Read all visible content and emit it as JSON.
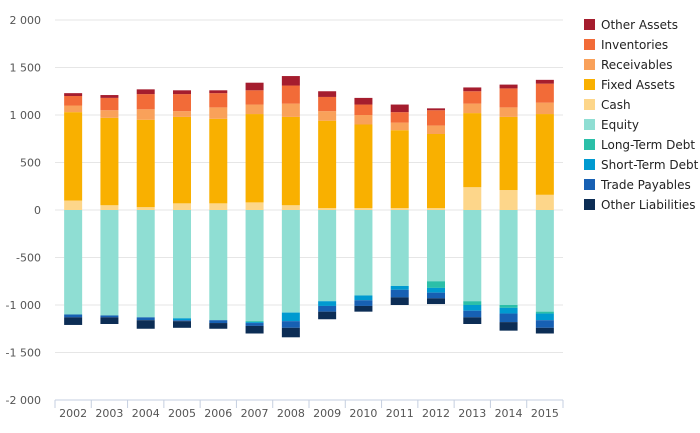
{
  "chart_data": {
    "type": "bar",
    "stacked": true,
    "categories": [
      "2002",
      "2003",
      "2004",
      "2005",
      "2006",
      "2007",
      "2008",
      "2009",
      "2010",
      "2011",
      "2012",
      "2013",
      "2014",
      "2015"
    ],
    "ylim": [
      -2000,
      2000
    ],
    "yticks": [
      2000,
      1500,
      1000,
      500,
      0,
      -500,
      -1000,
      -1500,
      -2000
    ],
    "ytick_labels": [
      "2 000",
      "1 500",
      "1 000",
      "500",
      "0",
      "-500",
      "-1 000",
      "-1 500",
      "-2 000"
    ],
    "grid": true,
    "legend_position": "right",
    "assets": [
      {
        "name": "Cash",
        "color": "#fdd68a",
        "values": [
          100,
          50,
          30,
          70,
          70,
          80,
          50,
          20,
          20,
          20,
          20,
          240,
          210,
          160
        ]
      },
      {
        "name": "Fixed Assets",
        "color": "#f9b000",
        "values": [
          930,
          920,
          920,
          910,
          890,
          930,
          930,
          920,
          880,
          820,
          780,
          780,
          770,
          850
        ]
      },
      {
        "name": "Receivables",
        "color": "#f9a15a",
        "values": [
          70,
          80,
          110,
          60,
          120,
          100,
          140,
          100,
          100,
          80,
          90,
          100,
          100,
          120
        ]
      },
      {
        "name": "Inventories",
        "color": "#f26b38",
        "values": [
          100,
          130,
          160,
          180,
          150,
          150,
          190,
          150,
          110,
          110,
          160,
          130,
          200,
          200
        ]
      },
      {
        "name": "Other Assets",
        "color": "#a51d2e",
        "values": [
          30,
          30,
          50,
          40,
          30,
          80,
          100,
          60,
          70,
          80,
          20,
          40,
          40,
          40
        ]
      }
    ],
    "liabilities": [
      {
        "name": "Equity",
        "color": "#8fded3",
        "values": [
          1100,
          1110,
          1130,
          1140,
          1160,
          1170,
          1080,
          960,
          900,
          800,
          750,
          960,
          1000,
          1070
        ]
      },
      {
        "name": "Long-Term Debt",
        "color": "#2bbfa8",
        "values": [
          0,
          0,
          0,
          0,
          0,
          10,
          0,
          0,
          0,
          0,
          70,
          40,
          30,
          20
        ]
      },
      {
        "name": "Short-Term Debt",
        "color": "#009ad0",
        "values": [
          0,
          0,
          0,
          20,
          0,
          10,
          90,
          50,
          50,
          40,
          50,
          60,
          60,
          70
        ]
      },
      {
        "name": "Trade Payables",
        "color": "#1760b3",
        "values": [
          30,
          20,
          30,
          10,
          30,
          30,
          70,
          60,
          60,
          80,
          60,
          70,
          90,
          80
        ]
      },
      {
        "name": "Other Liabilities",
        "color": "#0c2d55",
        "values": [
          80,
          70,
          90,
          70,
          60,
          80,
          100,
          80,
          60,
          80,
          60,
          70,
          90,
          60
        ]
      }
    ],
    "legend": [
      "Other Assets",
      "Inventories",
      "Receivables",
      "Fixed Assets",
      "Cash",
      "Equity",
      "Long-Term Debt",
      "Short-Term Debt",
      "Trade Payables",
      "Other Liabilities"
    ]
  }
}
